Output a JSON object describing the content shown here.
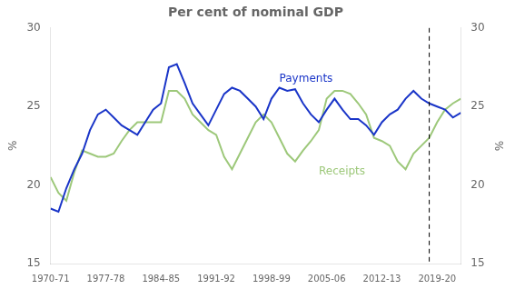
{
  "chart_data": {
    "type": "line",
    "title": "Per cent of nominal GDP",
    "y_label": "%",
    "y2_label": "%",
    "xlim": [
      1970,
      2022
    ],
    "xticks": [
      {
        "value": 1970,
        "label": "1970-71"
      },
      {
        "value": 1977,
        "label": "1977-78"
      },
      {
        "value": 1984,
        "label": "1984-85"
      },
      {
        "value": 1991,
        "label": "1991-92"
      },
      {
        "value": 1998,
        "label": "1998-99"
      },
      {
        "value": 2005,
        "label": "2005-06"
      },
      {
        "value": 2012,
        "label": "2012-13"
      },
      {
        "value": 2019,
        "label": "2019-20"
      }
    ],
    "ylim": [
      15,
      30
    ],
    "yticks": [
      15,
      20,
      25,
      30
    ],
    "y2lim": [
      15,
      30
    ],
    "y2ticks": [
      15,
      20,
      25,
      30
    ],
    "grid": false,
    "x": [
      1970,
      1971,
      1972,
      1973,
      1974,
      1975,
      1976,
      1977,
      1978,
      1979,
      1980,
      1981,
      1982,
      1983,
      1984,
      1985,
      1986,
      1987,
      1988,
      1989,
      1990,
      1991,
      1992,
      1993,
      1994,
      1995,
      1996,
      1997,
      1998,
      1999,
      2000,
      2001,
      2002,
      2003,
      2004,
      2005,
      2006,
      2007,
      2008,
      2009,
      2010,
      2011,
      2012,
      2013,
      2014,
      2015,
      2016,
      2017,
      2018,
      2019,
      2020,
      2021,
      2022
    ],
    "series": [
      {
        "color": "#1a35c8",
        "values": [
          18.5,
          18.3,
          19.8,
          21.0,
          22.0,
          23.5,
          24.5,
          24.8,
          24.3,
          23.8,
          23.5,
          23.2,
          24.0,
          24.8,
          25.2,
          27.5,
          27.7,
          26.5,
          25.2,
          24.5,
          23.8,
          24.8,
          25.8,
          26.2,
          26.0,
          25.5,
          25.0,
          24.2,
          25.5,
          26.2,
          26.0,
          26.1,
          25.2,
          24.5,
          24.0,
          24.8,
          25.5,
          24.8,
          24.2,
          24.2,
          23.8,
          23.2,
          24.0,
          24.5,
          24.8,
          25.5,
          26.0,
          25.5,
          25.2,
          25.0,
          24.8,
          24.3,
          24.6
        ]
      },
      {
        "color": "#9dc87a",
        "values": [
          20.5,
          19.5,
          19.0,
          20.8,
          22.2,
          22.0,
          21.8,
          21.8,
          22.0,
          22.8,
          23.5,
          24.0,
          24.0,
          24.0,
          24.0,
          26.0,
          26.0,
          25.5,
          24.5,
          24.0,
          23.5,
          23.2,
          21.8,
          21.0,
          22.0,
          23.0,
          24.0,
          24.5,
          24.0,
          23.0,
          22.0,
          21.5,
          22.2,
          22.8,
          23.5,
          25.5,
          26.0,
          26.0,
          25.8,
          25.2,
          24.5,
          23.0,
          22.8,
          22.5,
          21.5,
          21.0,
          22.0,
          22.5,
          23.0,
          24.0,
          24.8,
          25.2,
          25.5
        ]
      }
    ],
    "vlines": [
      {
        "x": 2018,
        "color": "black",
        "line_style": "dashed"
      }
    ],
    "annotations": [
      {
        "text": "Payments",
        "x": 1999,
        "y": 26.6,
        "color": "#1a35c8"
      },
      {
        "text": "Receipts",
        "x": 2004,
        "y": 20.7,
        "color": "#9dc87a"
      }
    ]
  }
}
